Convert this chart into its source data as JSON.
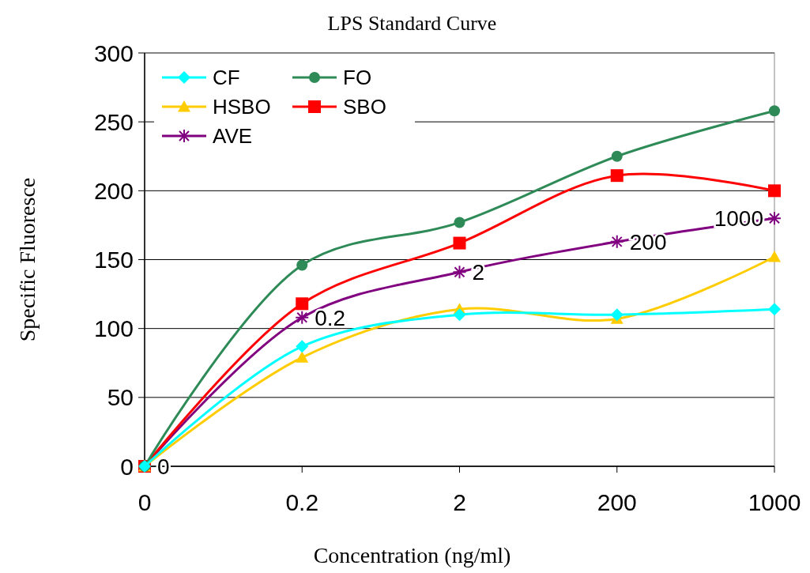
{
  "chart_data": {
    "type": "line",
    "title": "LPS Standard Curve",
    "xlabel": "Concentration (ng/ml)",
    "ylabel": "Specific Fluoresce",
    "categories": [
      "0",
      "0.2",
      "2",
      "200",
      "1000"
    ],
    "ylim": [
      0,
      300
    ],
    "yticks": [
      0,
      50,
      100,
      150,
      200,
      250,
      300
    ],
    "grid": "y",
    "legend": "top left",
    "series": [
      {
        "name": "CF",
        "color": "#00ffff",
        "marker": "diamond",
        "values": [
          0,
          87,
          110,
          110,
          114
        ]
      },
      {
        "name": "FO",
        "color": "#2e8b57",
        "marker": "circle",
        "values": [
          0,
          146,
          177,
          225,
          258
        ]
      },
      {
        "name": "HSBO",
        "color": "#ffcc00",
        "marker": "triangle",
        "values": [
          0,
          79,
          114,
          107,
          152
        ]
      },
      {
        "name": "SBO",
        "color": "#ff0000",
        "marker": "square",
        "values": [
          0,
          118,
          162,
          211,
          200
        ]
      },
      {
        "name": "AVE",
        "color": "#800080",
        "marker": "cross",
        "values": [
          0,
          108,
          141,
          163,
          180
        ]
      }
    ],
    "annotations": [
      {
        "text": "0",
        "x": "0",
        "y": 0
      },
      {
        "text": "0.2",
        "x": "0.2",
        "y": 108
      },
      {
        "text": "2",
        "x": "2",
        "y": 141
      },
      {
        "text": "200",
        "x": "200",
        "y": 163
      },
      {
        "text": "1000",
        "x": "1000",
        "y": 180
      }
    ]
  }
}
